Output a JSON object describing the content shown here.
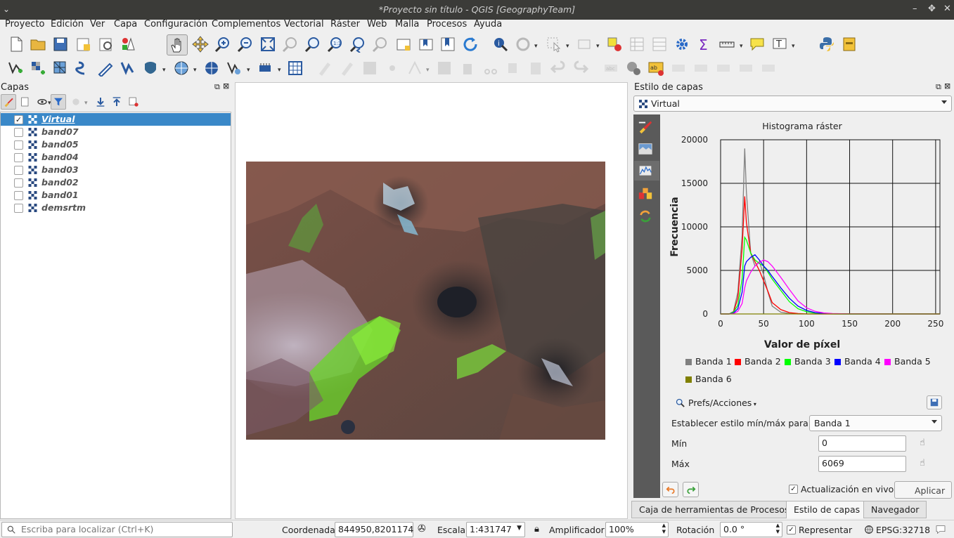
{
  "window": {
    "title": "*Proyecto sin título - QGIS [GeographyTeam]"
  },
  "menu": [
    "Proyecto",
    "Edición",
    "Ver",
    "Capa",
    "Configuración",
    "Complementos",
    "Vectorial",
    "Ráster",
    "Web",
    "Malla",
    "Procesos",
    "Ayuda"
  ],
  "layers_panel": {
    "title": "Capas",
    "layers": [
      {
        "name": "Virtual",
        "checked": true,
        "selected": true
      },
      {
        "name": "band07",
        "checked": false
      },
      {
        "name": "band05",
        "checked": false
      },
      {
        "name": "band04",
        "checked": false
      },
      {
        "name": "band03",
        "checked": false
      },
      {
        "name": "band02",
        "checked": false
      },
      {
        "name": "band01",
        "checked": false
      },
      {
        "name": "demsrtm",
        "checked": false
      }
    ]
  },
  "style_panel": {
    "title": "Estilo de capas",
    "layer_select": "Virtual",
    "prefs": "Prefs/Acciones",
    "minmax_label": "Establecer estilo mín/máx para",
    "minmax_band": "Banda 1",
    "min_label": "Mín",
    "min_value": "0",
    "max_label": "Máx",
    "max_value": "6069",
    "live_update": "Actualización en vivo",
    "apply": "Aplicar"
  },
  "chart_data": {
    "type": "line",
    "title": "Histograma ráster",
    "xlabel": "Valor de píxel",
    "ylabel": "Frecuencia",
    "xlim": [
      0,
      255
    ],
    "ylim": [
      0,
      20000
    ],
    "xticks": [
      0,
      50,
      100,
      150,
      200,
      250
    ],
    "yticks": [
      0,
      5000,
      10000,
      15000,
      20000
    ],
    "grid": true,
    "legend": "bottom",
    "x": [
      0,
      10,
      15,
      20,
      25,
      28,
      30,
      35,
      40,
      45,
      50,
      55,
      60,
      70,
      80,
      90,
      100,
      110,
      120,
      130,
      150,
      200,
      255
    ],
    "series": [
      {
        "name": "Banda 1",
        "color": "#808080",
        "values": [
          0,
          0,
          300,
          2500,
          9000,
          19000,
          14000,
          7000,
          5500,
          6000,
          4500,
          2500,
          900,
          200,
          50,
          0,
          0,
          0,
          0,
          0,
          0,
          0,
          0
        ]
      },
      {
        "name": "Banda 2",
        "color": "#ff0000",
        "values": [
          0,
          0,
          200,
          1800,
          7500,
          13500,
          10500,
          7000,
          6000,
          5000,
          3800,
          2600,
          1300,
          500,
          150,
          50,
          0,
          0,
          0,
          0,
          0,
          0,
          0
        ]
      },
      {
        "name": "Banda 3",
        "color": "#00ff00",
        "values": [
          0,
          0,
          200,
          1000,
          4000,
          8800,
          8500,
          7000,
          6200,
          5800,
          5500,
          4800,
          4000,
          2700,
          1400,
          600,
          250,
          100,
          50,
          0,
          0,
          0,
          0
        ]
      },
      {
        "name": "Banda 4",
        "color": "#0000ff",
        "values": [
          0,
          0,
          100,
          600,
          2500,
          5500,
          6000,
          6500,
          6800,
          6200,
          5500,
          5000,
          4300,
          3000,
          1800,
          900,
          400,
          150,
          60,
          20,
          0,
          0,
          0
        ]
      },
      {
        "name": "Banda 5",
        "color": "#ff00ff",
        "values": [
          0,
          0,
          50,
          300,
          1200,
          3000,
          3800,
          4800,
          5500,
          5900,
          6200,
          6000,
          5500,
          4200,
          2800,
          1500,
          700,
          300,
          120,
          50,
          10,
          0,
          0
        ]
      },
      {
        "name": "Banda 6",
        "color": "#808000",
        "values": [
          0,
          0,
          0,
          0,
          0,
          0,
          0,
          0,
          0,
          0,
          0,
          0,
          0,
          0,
          0,
          0,
          0,
          0,
          0,
          0,
          0,
          0,
          0
        ]
      }
    ]
  },
  "bottom_tabs": [
    "Caja de herramientas de Procesos",
    "Estilo de capas",
    "Navegador"
  ],
  "status": {
    "search_placeholder": "Escriba para localizar (Ctrl+K)",
    "coord_label": "Coordenada",
    "coord_value": "844950,8201174",
    "scale_label": "Escala",
    "scale_value": "1:431747",
    "magnifier_label": "Amplificador",
    "magnifier_value": "100%",
    "rotation_label": "Rotación",
    "rotation_value": "0.0 °",
    "render_label": "Representar",
    "crs": "EPSG:32718"
  },
  "colors": {
    "accent": "#3a88c8",
    "titlebar": "#3b3b38"
  }
}
